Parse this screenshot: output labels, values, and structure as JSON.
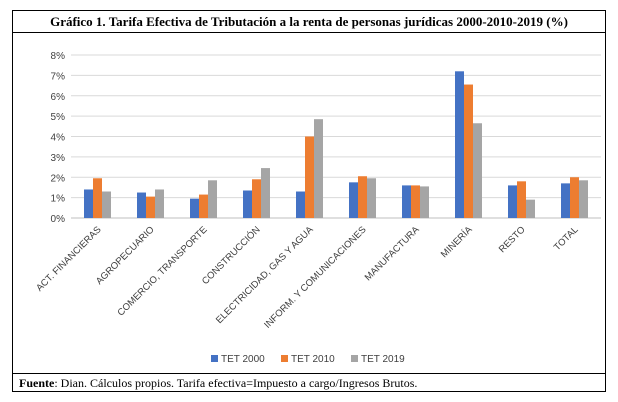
{
  "header": {
    "title": "Gráfico 1. Tarifa Efectiva de Tributación a la renta de personas jurídicas 2000-2010-2019 (%)"
  },
  "footer": {
    "source_label": "Fuente",
    "source_text": ": Dian. Cálculos propios. Tarifa efectiva=Impuesto a cargo/Ingresos Brutos."
  },
  "chart_data": {
    "type": "bar",
    "title": "",
    "xlabel": "",
    "ylabel": "",
    "ylim": [
      0,
      8
    ],
    "yticks": [
      "0%",
      "1%",
      "2%",
      "3%",
      "4%",
      "5%",
      "6%",
      "7%",
      "8%"
    ],
    "grid": true,
    "legend_position": "bottom",
    "categories": [
      "ACT. FINANCIERAS",
      "AGROPECUARIO",
      "COMERCIO, TRANSPORTE",
      "CONSTRUCCIÓN",
      "ELECTRICIDAD, GAS Y AGUA",
      "INFORM. Y COMUNICACIONES",
      "MANUFACTURA",
      "MINERÍA",
      "RESTO",
      "TOTAL"
    ],
    "series": [
      {
        "name": "TET 2000",
        "color": "#4472c4",
        "values": [
          1.4,
          1.25,
          0.95,
          1.35,
          1.3,
          1.75,
          1.6,
          7.2,
          1.6,
          1.7
        ]
      },
      {
        "name": "TET 2010",
        "color": "#ed7d31",
        "values": [
          1.95,
          1.05,
          1.15,
          1.9,
          4.0,
          2.05,
          1.6,
          6.55,
          1.8,
          2.0
        ]
      },
      {
        "name": "TET 2019",
        "color": "#a5a5a5",
        "values": [
          1.3,
          1.4,
          1.85,
          2.45,
          4.85,
          1.95,
          1.55,
          4.65,
          0.9,
          1.85
        ]
      }
    ]
  }
}
